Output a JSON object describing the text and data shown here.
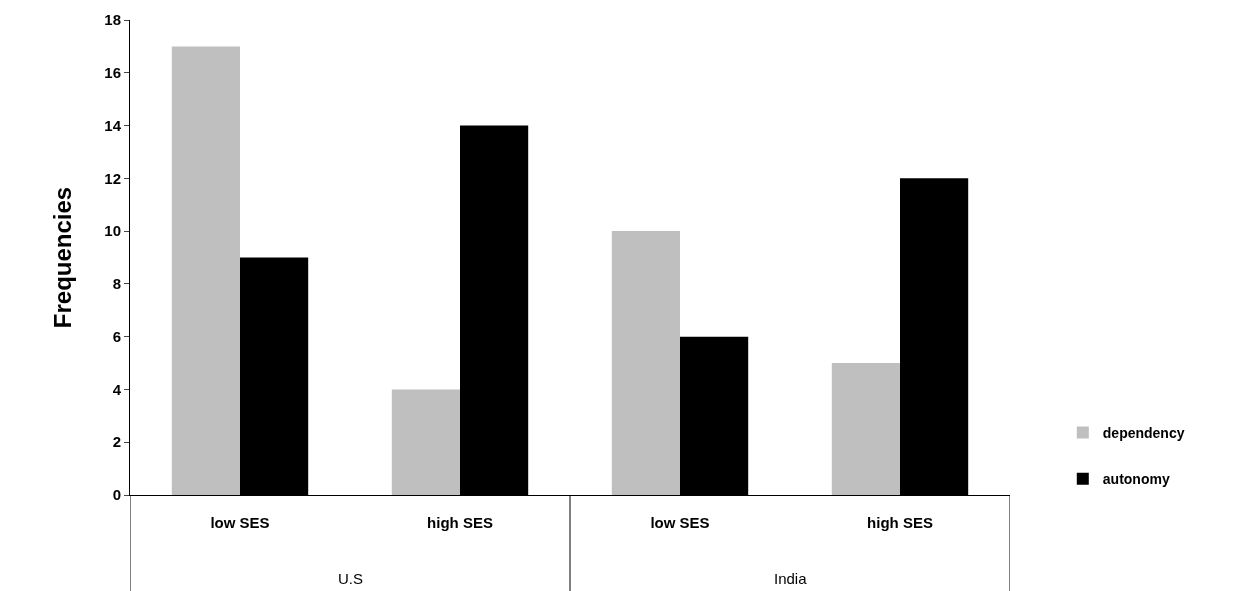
{
  "chart_data": {
    "type": "bar",
    "ylabel": "Frequencies",
    "categories": [
      "low SES",
      "high SES",
      "low SES",
      "high SES"
    ],
    "series": [
      {
        "name": "dependency",
        "color": "#bfbfbf",
        "values": [
          17,
          4,
          10,
          5
        ]
      },
      {
        "name": "autonomy",
        "color": "#000000",
        "values": [
          9,
          14,
          6,
          12
        ]
      }
    ],
    "annotations": [
      "U.S",
      "India"
    ],
    "ylim": [
      0,
      18
    ],
    "yticks": [
      0,
      2,
      4,
      6,
      8,
      10,
      12,
      14,
      16,
      18
    ],
    "grid": false,
    "legend": "bottom right"
  }
}
